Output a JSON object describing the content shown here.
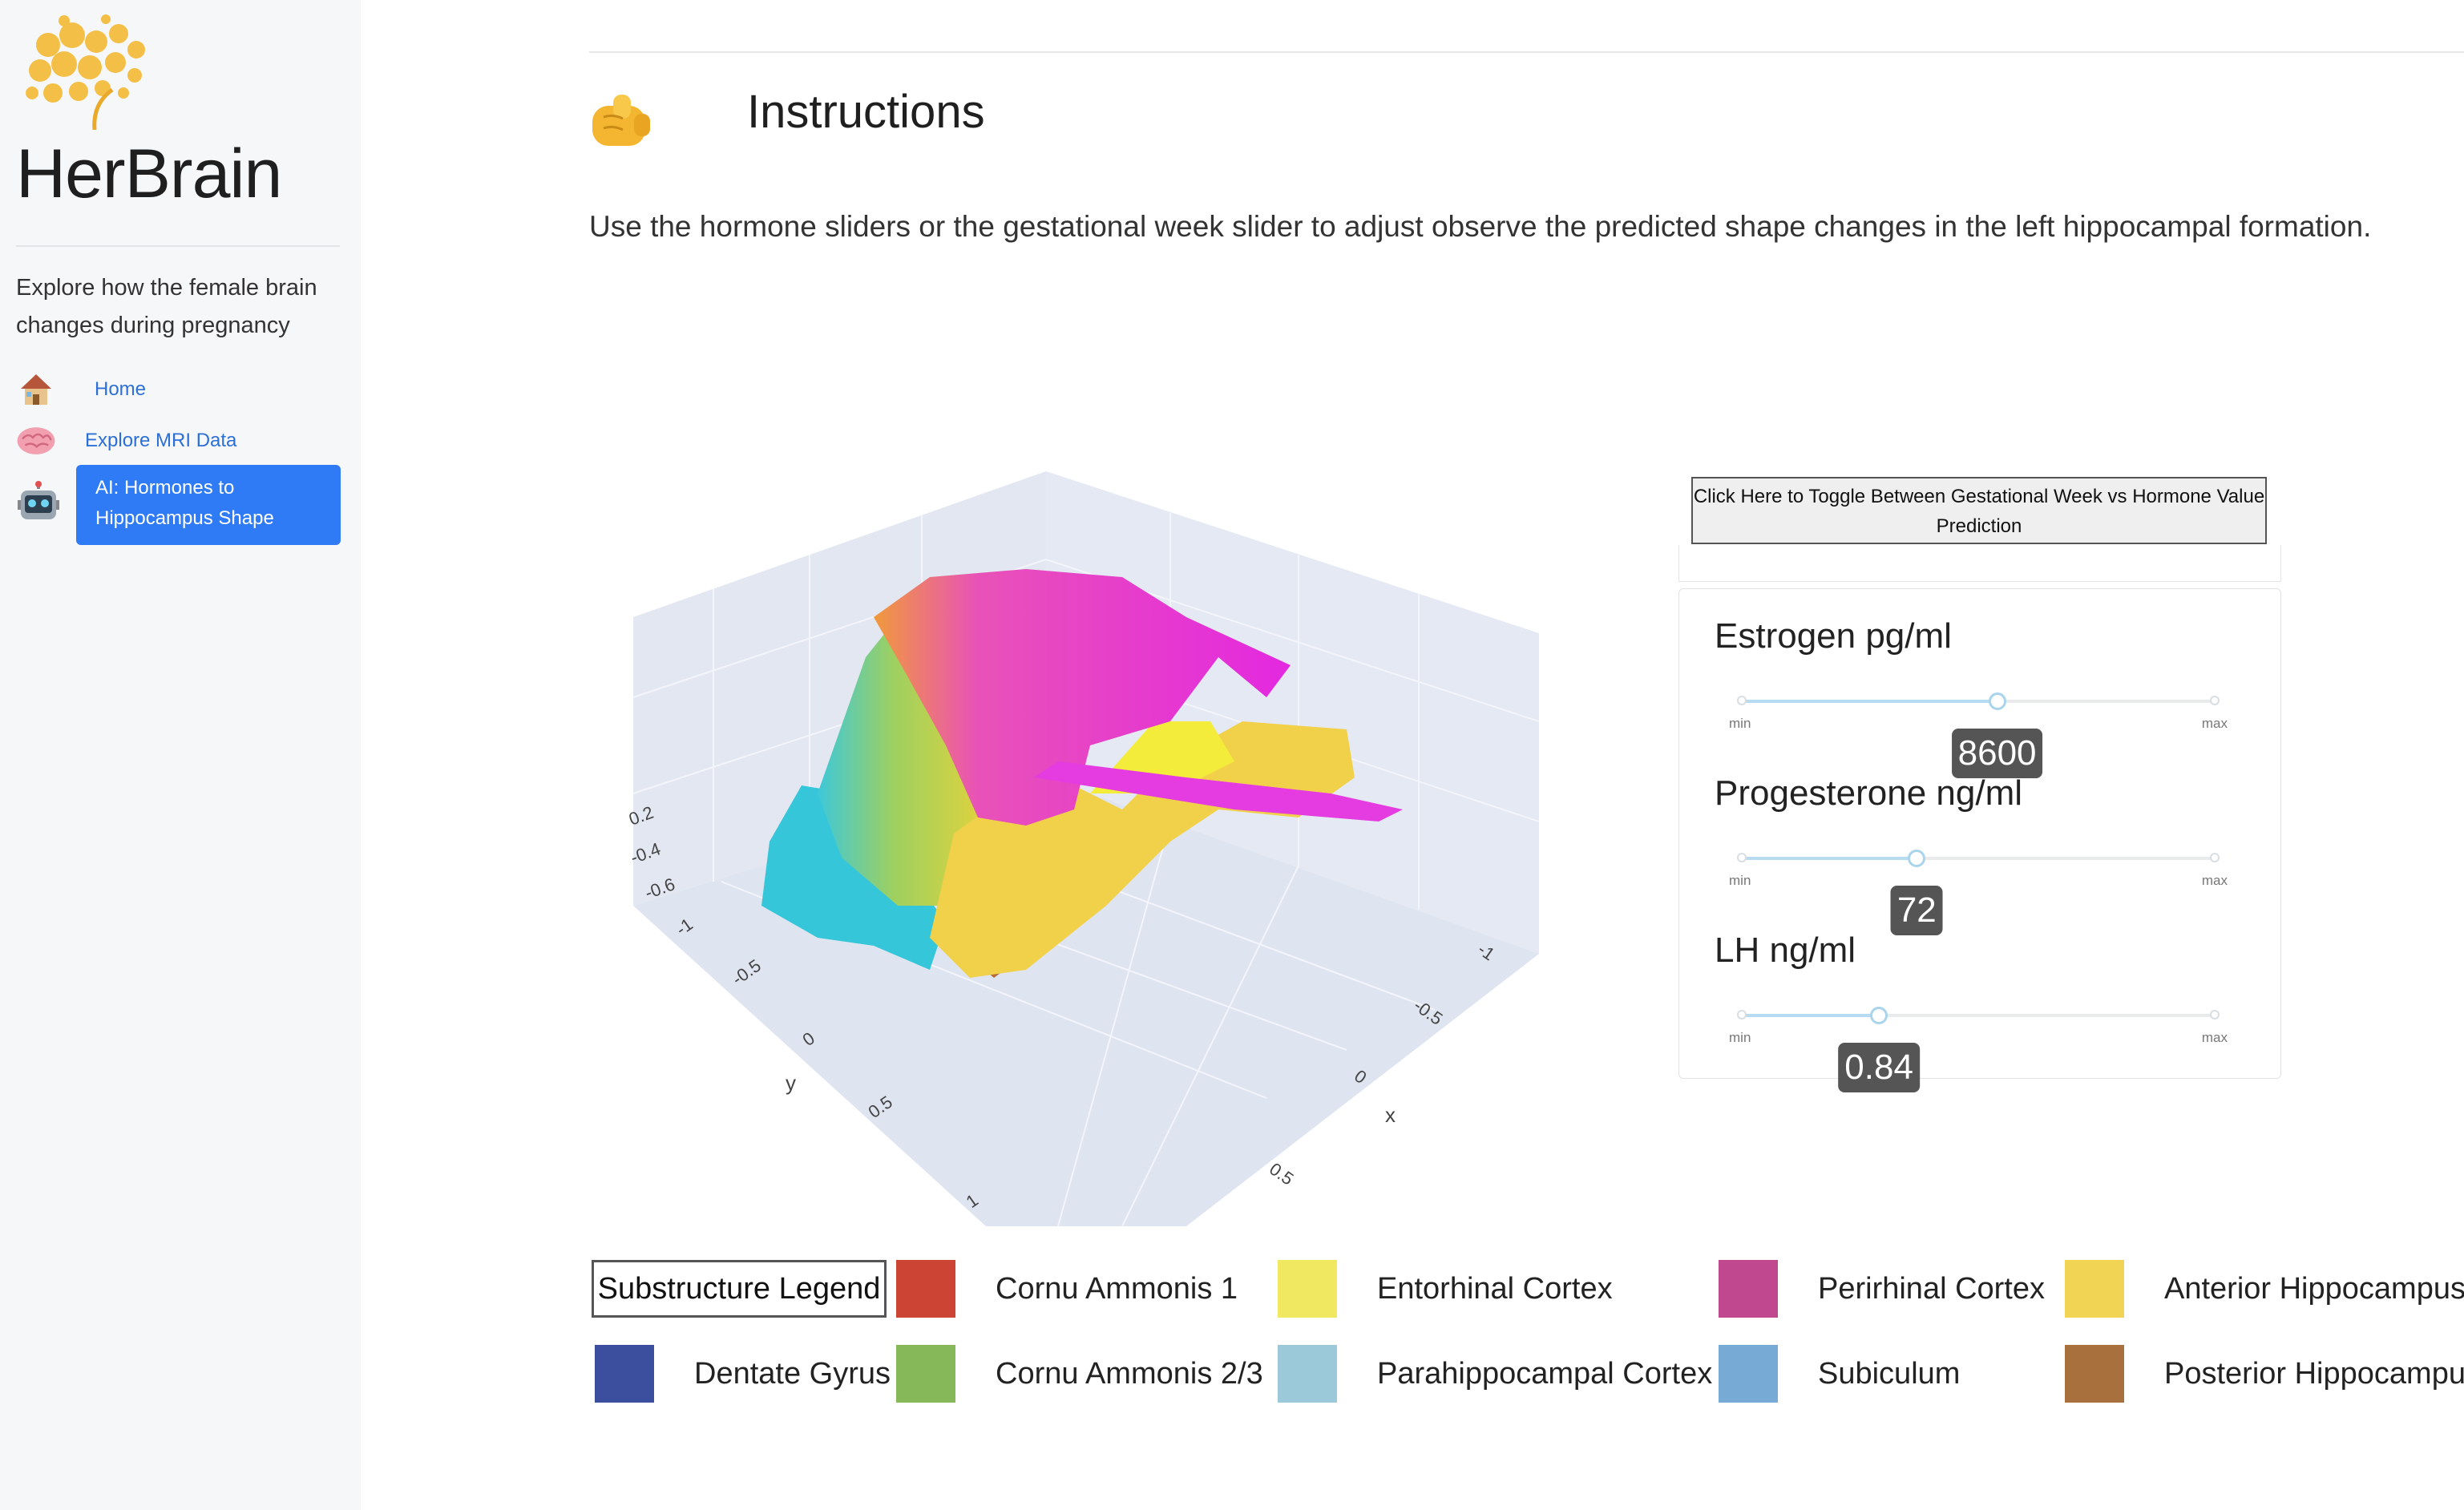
{
  "sidebar": {
    "brand": "HerBrain",
    "tagline": "Explore how the female brain changes during pregnancy",
    "nav": [
      {
        "label": "Home",
        "icon": "house-icon"
      },
      {
        "label": "Explore MRI Data",
        "icon": "brain-icon"
      },
      {
        "label": "AI: Hormones to Hippocampus Shape",
        "icon": "robot-icon",
        "active": true
      }
    ]
  },
  "main": {
    "instructions_title": "Instructions",
    "instructions_text": "Use the hormone sliders or the gestational week slider to adjust observe the predicted shape changes in the left hippocampal formation."
  },
  "plot": {
    "axes": {
      "y_ticks": [
        "-1",
        "-0.5",
        "0",
        "0.5",
        "1"
      ],
      "y_label": "y",
      "x_ticks": [
        "-1",
        "-0.5",
        "0",
        "0.5"
      ],
      "x_label": "x",
      "z_ticks": [
        "0.2",
        "-0.4",
        "-0.6"
      ]
    }
  },
  "controls": {
    "toggle_label": "Click Here to Toggle Between Gestational Week vs Hormone Value Prediction",
    "min_label": "min",
    "max_label": "max",
    "sliders": [
      {
        "label": "Estrogen pg/ml",
        "value": "8600",
        "fraction": 0.54
      },
      {
        "label": "Progesterone ng/ml",
        "value": "72",
        "fraction": 0.37
      },
      {
        "label": "LH ng/ml",
        "value": "0.84",
        "fraction": 0.29
      }
    ]
  },
  "legend": {
    "title": "Substructure Legend",
    "items": [
      {
        "label": "Cornu Ammonis 1",
        "color": "#cc4433"
      },
      {
        "label": "Entorhinal Cortex",
        "color": "#f0e860"
      },
      {
        "label": "Perirhinal Cortex",
        "color": "#c0488e"
      },
      {
        "label": "Anterior Hippocampus",
        "color": "#f2d454"
      },
      {
        "label": "Dentate Gyrus",
        "color": "#3c4f9e"
      },
      {
        "label": "Cornu Ammonis 2/3",
        "color": "#86b85a"
      },
      {
        "label": "Parahippocampal Cortex",
        "color": "#9cc9da"
      },
      {
        "label": "Subiculum",
        "color": "#78aad6"
      },
      {
        "label": "Posterior Hippocampus",
        "color": "#a8703c"
      }
    ]
  }
}
